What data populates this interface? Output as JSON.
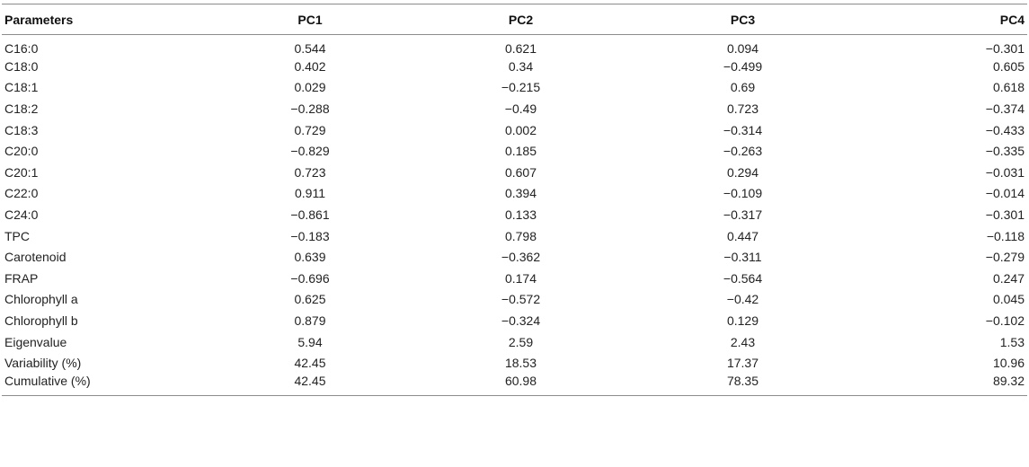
{
  "table": {
    "headers": [
      "Parameters",
      "PC1",
      "PC2",
      "PC3",
      "PC4"
    ],
    "rows": [
      [
        "C16:0",
        "0.544",
        "0.621",
        "0.094",
        "−0.301"
      ],
      [
        "C18:0",
        "0.402",
        "0.34",
        "−0.499",
        "0.605"
      ],
      [
        "C18:1",
        "0.029",
        "−0.215",
        "0.69",
        "0.618"
      ],
      [
        "C18:2",
        "−0.288",
        "−0.49",
        "0.723",
        "−0.374"
      ],
      [
        "C18:3",
        "0.729",
        "0.002",
        "−0.314",
        "−0.433"
      ],
      [
        "C20:0",
        "−0.829",
        "0.185",
        "−0.263",
        "−0.335"
      ],
      [
        "C20:1",
        "0.723",
        "0.607",
        "0.294",
        "−0.031"
      ],
      [
        "C22:0",
        "0.911",
        "0.394",
        "−0.109",
        "−0.014"
      ],
      [
        "C24:0",
        "−0.861",
        "0.133",
        "−0.317",
        "−0.301"
      ],
      [
        "TPC",
        "−0.183",
        "0.798",
        "0.447",
        "−0.118"
      ],
      [
        "Carotenoid",
        "0.639",
        "−0.362",
        "−0.311",
        "−0.279"
      ],
      [
        "FRAP",
        "−0.696",
        "0.174",
        "−0.564",
        "0.247"
      ],
      [
        "Chlorophyll a",
        "0.625",
        "−0.572",
        "−0.42",
        "0.045"
      ],
      [
        "Chlorophyll b",
        "0.879",
        "−0.324",
        "0.129",
        "−0.102"
      ],
      [
        "Eigenvalue",
        "5.94",
        "2.59",
        "2.43",
        "1.53"
      ],
      [
        "Variability (%)",
        "42.45",
        "18.53",
        "17.37",
        "10.96"
      ],
      [
        "Cumulative (%)",
        "42.45",
        "60.98",
        "78.35",
        "89.32"
      ]
    ]
  }
}
